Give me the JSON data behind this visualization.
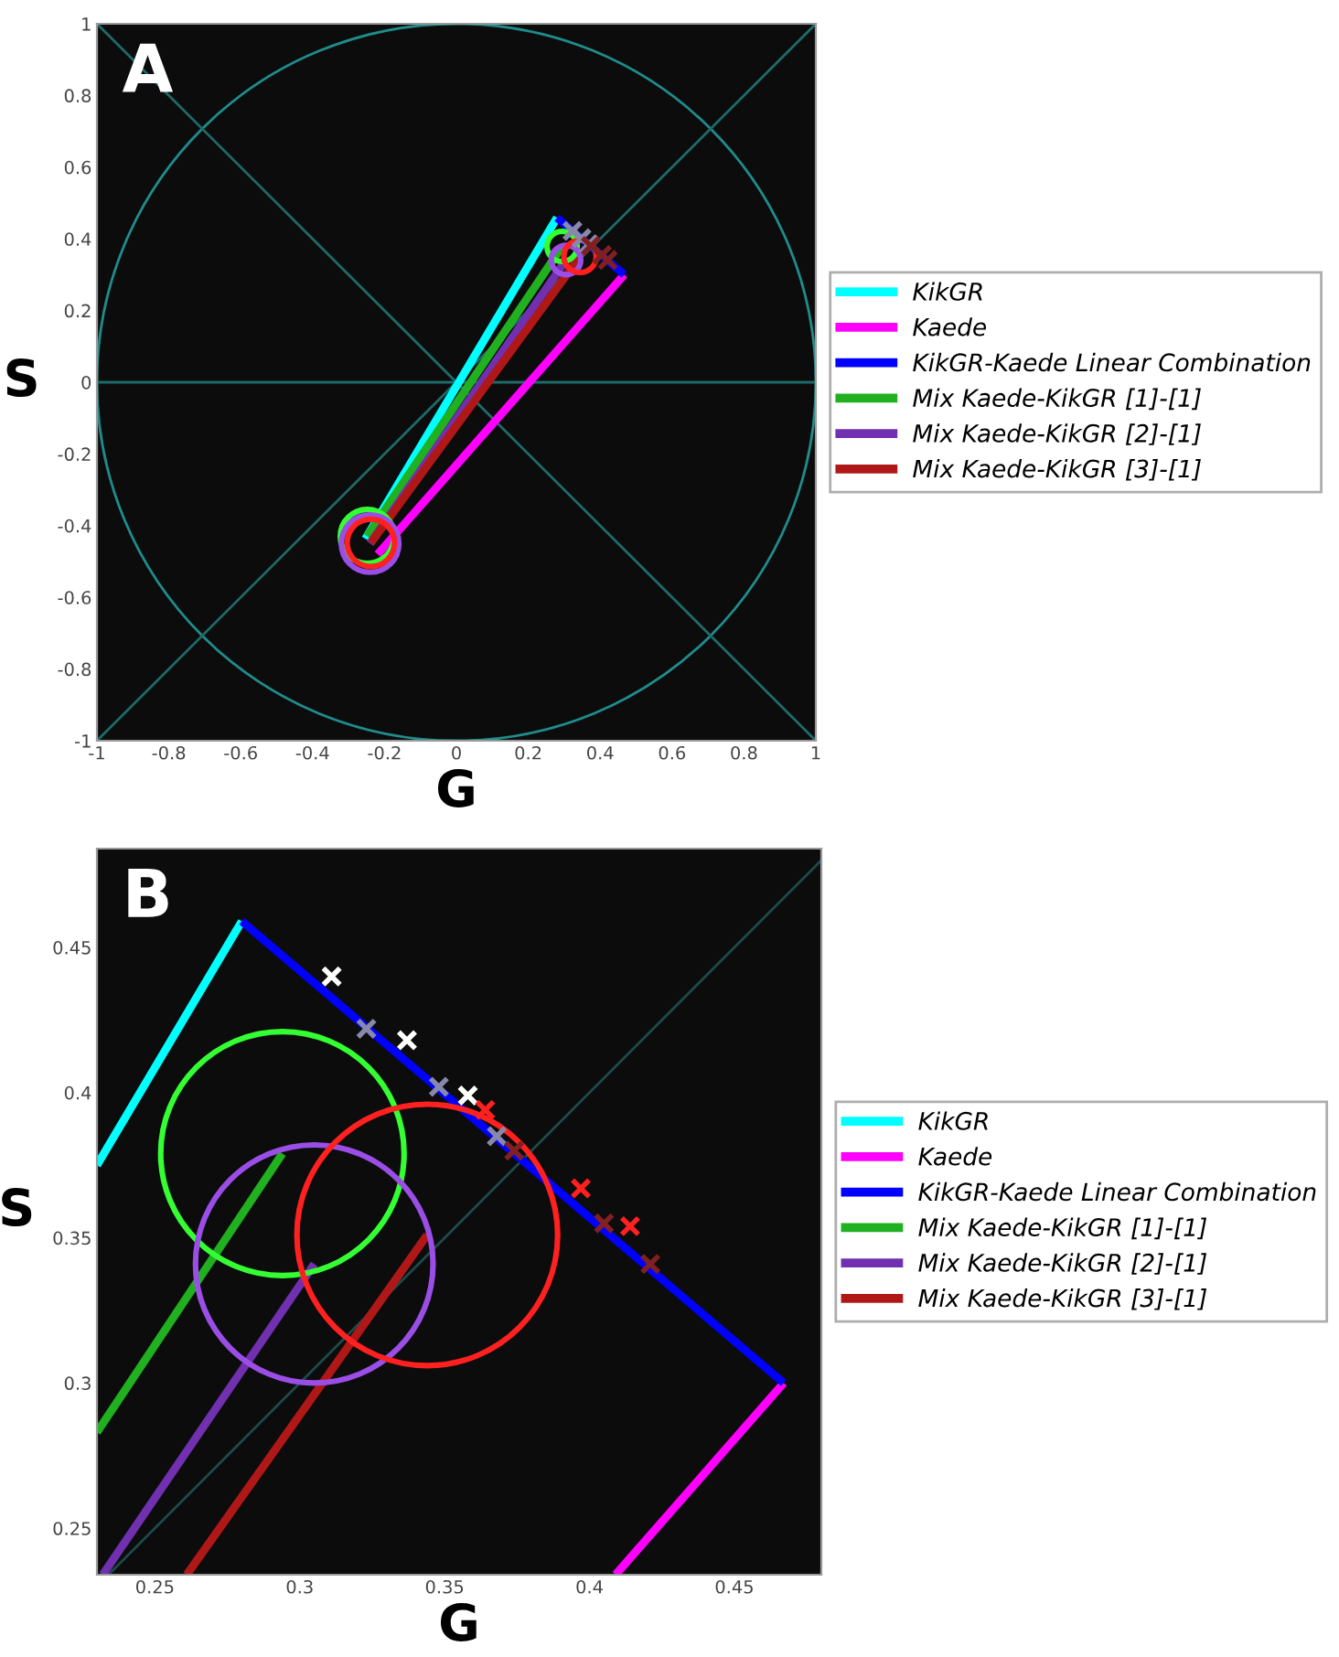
{
  "chart_data": [
    {
      "type": "line",
      "xlabel": "G",
      "ylabel": "S",
      "annotations": [
        "A"
      ],
      "legend": "right",
      "xlim": [
        -1,
        1
      ],
      "ylim": [
        -1,
        1
      ],
      "xticks": [
        -1,
        -0.8,
        -0.6,
        -0.4,
        -0.2,
        0,
        0.2,
        0.4,
        0.6,
        0.8,
        1
      ],
      "yticks": [
        -1,
        -0.8,
        -0.6,
        -0.4,
        -0.2,
        0,
        0.2,
        0.4,
        0.6,
        0.8,
        1
      ],
      "series": [
        {
          "color": "#1f6a6a",
          "x": [
            -1,
            1
          ],
          "values": [
            0,
            0
          ]
        },
        {
          "color": "#1f6a6a",
          "x": [
            -1,
            1
          ],
          "values": [
            -1,
            1
          ]
        },
        {
          "color": "#1f6a6a",
          "x": [
            -1,
            1
          ],
          "values": [
            1,
            -1
          ]
        },
        {
          "name": "KikGR",
          "color": "#00ffff",
          "x": [
            -0.253,
            0.28
          ],
          "values": [
            -0.437,
            0.459
          ]
        },
        {
          "name": "Kaede",
          "color": "#ff00ff",
          "x": [
            -0.219,
            0.467
          ],
          "values": [
            -0.48,
            0.3
          ]
        },
        {
          "name": "KikGR-Kaede Linear Combination",
          "color": "#0000ff",
          "x": [
            0.28,
            0.467
          ],
          "values": [
            0.459,
            0.3
          ]
        },
        {
          "name": "Mix Kaede-KikGR [1]-[1]",
          "marker": "circle",
          "color": "#20b020",
          "x": [
            -0.248,
            0.294
          ],
          "values": [
            -0.43,
            0.379
          ]
        },
        {
          "name": "Mix Kaede-KikGR [2]-[1]",
          "marker": "circle",
          "color": "#7030b0",
          "x": [
            -0.24,
            0.305
          ],
          "values": [
            -0.45,
            0.341
          ]
        },
        {
          "name": "Mix Kaede-KikGR [3]-[1]",
          "marker": "circle",
          "color": "#b01818",
          "x": [
            -0.238,
            0.344
          ],
          "values": [
            -0.448,
            0.351
          ]
        },
        {
          "type": "scatter",
          "marker": "cross",
          "color": "#8888aa",
          "x": [
            0.323,
            0.348,
            0.368
          ],
          "values": [
            0.422,
            0.402,
            0.385
          ]
        },
        {
          "type": "scatter",
          "marker": "cross",
          "color": "#802020",
          "x": [
            0.374,
            0.405,
            0.421
          ],
          "values": [
            0.38,
            0.355,
            0.341
          ]
        }
      ]
    },
    {
      "type": "line",
      "xlabel": "G",
      "ylabel": "S",
      "annotations": [
        "B"
      ],
      "legend": "right",
      "xlim": [
        0.23,
        0.48
      ],
      "ylim": [
        0.234,
        0.484
      ],
      "xticks": [
        0.25,
        0.3,
        0.35,
        0.4,
        0.45
      ],
      "yticks": [
        0.25,
        0.3,
        0.35,
        0.4,
        0.45
      ],
      "series": [
        {
          "color": "#1f4a4a",
          "x": [
            0.234,
            0.48
          ],
          "values": [
            0.234,
            0.48
          ]
        },
        {
          "name": "KikGR",
          "color": "#00ffff",
          "x": [
            0.23,
            0.28
          ],
          "values": [
            0.375,
            0.459
          ]
        },
        {
          "name": "Kaede",
          "color": "#ff00ff",
          "x": [
            0.409,
            0.467
          ],
          "values": [
            0.234,
            0.3
          ]
        },
        {
          "name": "KikGR-Kaede Linear Combination",
          "color": "#0000ff",
          "x": [
            0.28,
            0.467
          ],
          "values": [
            0.459,
            0.3
          ]
        },
        {
          "name": "Mix Kaede-KikGR [1]-[1]",
          "marker": "circle",
          "color": "#20b020",
          "x": [
            0.23,
            0.294
          ],
          "values": [
            0.283,
            0.379
          ]
        },
        {
          "name": "Mix Kaede-KikGR [2]-[1]",
          "marker": "circle",
          "color": "#7030b0",
          "x": [
            0.232,
            0.305
          ],
          "values": [
            0.234,
            0.341
          ]
        },
        {
          "name": "Mix Kaede-KikGR [3]-[1]",
          "marker": "circle",
          "color": "#b01818",
          "x": [
            0.261,
            0.344
          ],
          "values": [
            0.234,
            0.351
          ]
        },
        {
          "type": "scatter",
          "marker": "cross",
          "color": "#8888aa",
          "x": [
            0.323,
            0.348,
            0.368
          ],
          "values": [
            0.422,
            0.402,
            0.385
          ]
        },
        {
          "type": "scatter",
          "marker": "cross",
          "color": "#802020",
          "x": [
            0.374,
            0.405,
            0.421
          ],
          "values": [
            0.38,
            0.355,
            0.341
          ]
        },
        {
          "type": "scatter",
          "marker": "cross",
          "color": "#ffffff",
          "x": [
            0.311,
            0.337,
            0.358
          ],
          "values": [
            0.44,
            0.418,
            0.399
          ]
        },
        {
          "type": "scatter",
          "marker": "cross",
          "color": "#ff2020",
          "x": [
            0.364,
            0.397,
            0.414
          ],
          "values": [
            0.394,
            0.367,
            0.354
          ]
        }
      ]
    }
  ]
}
